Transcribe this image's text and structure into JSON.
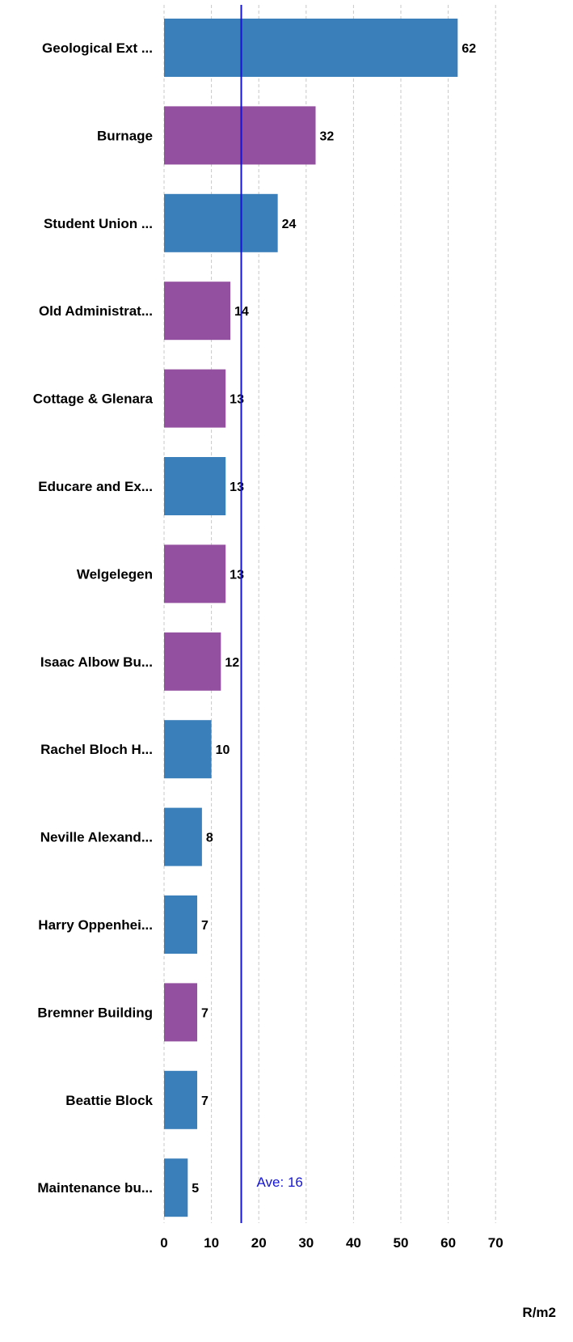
{
  "chart_data": {
    "type": "bar",
    "orientation": "horizontal",
    "categories": [
      "Geological Ext ...",
      "Burnage",
      "Student Union ...",
      "Old Administrat...",
      "Cottage & Glenara",
      "Educare and Ex...",
      "Welgelegen",
      "Isaac Albow Bu...",
      "Rachel Bloch H...",
      "Neville Alexand...",
      "Harry Oppenhei...",
      "Bremner Building",
      "Beattie Block",
      "Maintenance bu..."
    ],
    "values": [
      62,
      32,
      24,
      14,
      13,
      13,
      13,
      12,
      10,
      8,
      7,
      7,
      7,
      5
    ],
    "value_labels": [
      "62",
      "32",
      "24",
      "14",
      "13",
      "13",
      "13",
      "12",
      "10",
      "8",
      "7",
      "7",
      "7",
      "5"
    ],
    "bar_colors": [
      "#3a7fba",
      "#9450a0",
      "#3a7fba",
      "#9450a0",
      "#9450a0",
      "#3a7fba",
      "#9450a0",
      "#9450a0",
      "#3a7fba",
      "#3a7fba",
      "#3a7fba",
      "#9450a0",
      "#3a7fba",
      "#3a7fba"
    ],
    "xlabel": "R/m2",
    "ylabel": "",
    "xlim": [
      0,
      70
    ],
    "xticks": [
      0,
      10,
      20,
      30,
      40,
      50,
      60,
      70
    ],
    "grid": true,
    "reference_line": {
      "value": 16.3,
      "label": "Ave: 16",
      "color": "#1515d0"
    }
  },
  "colors": {
    "blue": "#3a7fba",
    "purple": "#9450a0",
    "grid": "#c8c8c8",
    "text": "#000000"
  }
}
